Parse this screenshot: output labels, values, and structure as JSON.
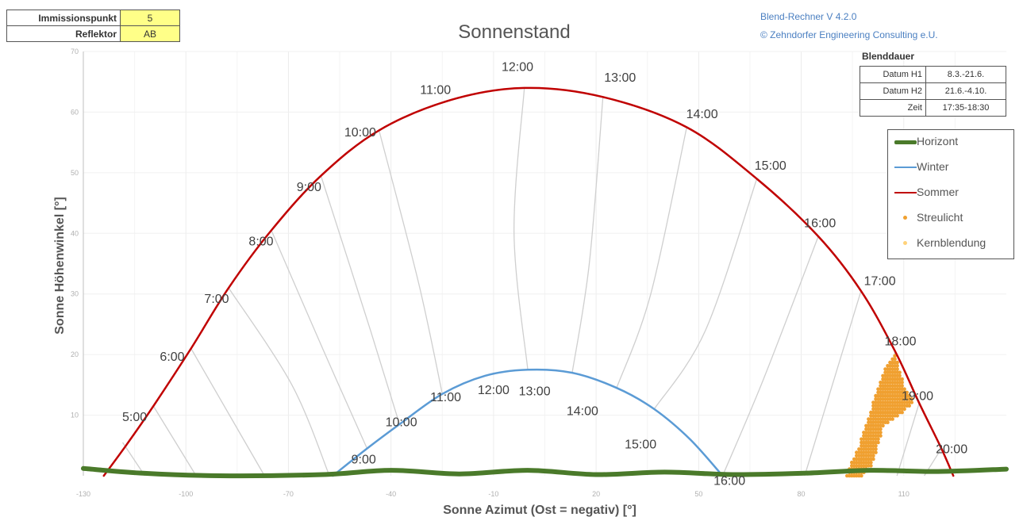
{
  "info": {
    "rows": [
      {
        "label": "Immissionspunkt",
        "value": "5"
      },
      {
        "label": "Reflektor",
        "value": "AB"
      }
    ]
  },
  "credits": {
    "line1": "Blend-Rechner   V 4.2.0",
    "line2": "© Zehndorfer Engineering Consulting e.U."
  },
  "blenddauer": {
    "title": "Blenddauer",
    "rows": [
      {
        "label": "Datum H1",
        "value": "8.3.-21.6."
      },
      {
        "label": "Datum H2",
        "value": "21.6.-4.10."
      },
      {
        "label": "Zeit",
        "value": "17:35-18:30"
      }
    ]
  },
  "legend": [
    {
      "label": "Horizont",
      "color": "#4a7a2a",
      "kind": "thick-line"
    },
    {
      "label": "Winter",
      "color": "#5b9bd5",
      "kind": "line"
    },
    {
      "label": "Sommer",
      "color": "#c00000",
      "kind": "line"
    },
    {
      "label": "Streulicht",
      "color": "#f0a030",
      "kind": "dot"
    },
    {
      "label": "Kernblendung",
      "color": "#ffd27a",
      "kind": "dot"
    }
  ],
  "chart_data": {
    "type": "line",
    "title": "Sonnenstand",
    "xlabel": "Sonne Azimut (Ost = negativ) [°]",
    "ylabel": "Sonne Höhenwinkel [°]",
    "xlim": [
      -130,
      140
    ],
    "ylim": [
      0,
      70
    ],
    "xticks": [
      "-130",
      "-100",
      "-70",
      "-40",
      "-10",
      "20",
      "50",
      "80",
      "110"
    ],
    "yticks": [
      "10",
      "20",
      "30",
      "40",
      "50",
      "60",
      "70"
    ],
    "grid": true,
    "legend_position": "right",
    "series": [
      {
        "name": "Sommer",
        "color": "#c00000",
        "points": [
          [
            -124,
            0
          ],
          [
            -117.5,
            5
          ],
          [
            -109.5,
            11.5
          ],
          [
            -98.5,
            21
          ],
          [
            -87.5,
            31
          ],
          [
            -75,
            40.5
          ],
          [
            -60.5,
            49.5
          ],
          [
            -43.5,
            57
          ],
          [
            -22.5,
            62
          ],
          [
            -1,
            64
          ],
          [
            22,
            62.5
          ],
          [
            46.5,
            57.5
          ],
          [
            67,
            49
          ],
          [
            85,
            39.5
          ],
          [
            97.5,
            30.5
          ],
          [
            107.5,
            20.5
          ],
          [
            114.5,
            12
          ],
          [
            121,
            4.5
          ],
          [
            124.5,
            0
          ]
        ]
      },
      {
        "name": "Winter",
        "color": "#5b9bd5",
        "points": [
          [
            -57,
            0
          ],
          [
            -47,
            4.5
          ],
          [
            -37.5,
            8.5
          ],
          [
            -25,
            13.5
          ],
          [
            -12.5,
            16.5
          ],
          [
            0,
            17.5
          ],
          [
            13,
            17
          ],
          [
            26,
            14.5
          ],
          [
            37,
            11
          ],
          [
            47.5,
            6
          ],
          [
            57,
            0
          ]
        ]
      },
      {
        "name": "Horizont",
        "color": "#4a7a2a",
        "points": [
          [
            -130,
            1.2
          ],
          [
            -112,
            0.4
          ],
          [
            -90,
            0
          ],
          [
            -60,
            0.2
          ],
          [
            -40,
            0.9
          ],
          [
            -20,
            0.3
          ],
          [
            0,
            0.9
          ],
          [
            20,
            0.2
          ],
          [
            40,
            0.6
          ],
          [
            60,
            0.2
          ],
          [
            80,
            0.4
          ],
          [
            100,
            0.9
          ],
          [
            120,
            0.7
          ],
          [
            140,
            1.1
          ]
        ]
      }
    ],
    "hour_curves": [
      {
        "label": "5:00",
        "points": [
          [
            -118.5,
            5.5
          ],
          [
            -112,
            0
          ]
        ]
      },
      {
        "label": "6:00",
        "points": [
          [
            -109.5,
            11.5
          ],
          [
            -97,
            0
          ]
        ]
      },
      {
        "label": "7:00",
        "points": [
          [
            -98.5,
            21
          ],
          [
            -77,
            0
          ]
        ]
      },
      {
        "label": "8:00",
        "points": [
          [
            -87.5,
            31
          ],
          [
            -69,
            15
          ],
          [
            -58,
            0
          ]
        ]
      },
      {
        "label": "9:00",
        "points": [
          [
            -75,
            40.5
          ],
          [
            -60,
            21
          ],
          [
            -47,
            4.5
          ]
        ]
      },
      {
        "label": "10:00",
        "points": [
          [
            -60.5,
            49.5
          ],
          [
            -46,
            24
          ],
          [
            -37.5,
            8.5
          ]
        ]
      },
      {
        "label": "11:00",
        "points": [
          [
            -43.5,
            57
          ],
          [
            -32,
            32
          ],
          [
            -25,
            13.5
          ]
        ]
      },
      {
        "label": "12:00",
        "points": [
          [
            -1,
            64
          ],
          [
            -4,
            40
          ],
          [
            0,
            17.5
          ]
        ]
      },
      {
        "label": "13:00",
        "points": [
          [
            22,
            62.5
          ],
          [
            18,
            35
          ],
          [
            13,
            17
          ]
        ]
      },
      {
        "label": "14:00",
        "points": [
          [
            46.5,
            57.5
          ],
          [
            36,
            30
          ],
          [
            26,
            14.5
          ]
        ]
      },
      {
        "label": "15:00",
        "points": [
          [
            67,
            49
          ],
          [
            52,
            24
          ],
          [
            37,
            11
          ]
        ]
      },
      {
        "label": "16:00",
        "points": [
          [
            85,
            39.5
          ],
          [
            69,
            16
          ],
          [
            57,
            0
          ]
        ]
      },
      {
        "label": "17:00",
        "points": [
          [
            97.5,
            30.5
          ],
          [
            81,
            0
          ]
        ]
      },
      {
        "label": "18:00",
        "points": [
          [
            107.5,
            20.5
          ],
          [
            96,
            0
          ]
        ]
      },
      {
        "label": "19:00",
        "points": [
          [
            114.5,
            12
          ],
          [
            108,
            0
          ]
        ]
      },
      {
        "label": "20:00",
        "points": [
          [
            121,
            4.5
          ],
          [
            116,
            0
          ]
        ]
      }
    ],
    "summer_hour_labels": [
      {
        "text": "5:00",
        "x": -115,
        "y": 9
      },
      {
        "text": "6:00",
        "x": -104,
        "y": 19
      },
      {
        "text": "7:00",
        "x": -91,
        "y": 28.5
      },
      {
        "text": "8:00",
        "x": -78,
        "y": 38
      },
      {
        "text": "9:00",
        "x": -64,
        "y": 47
      },
      {
        "text": "10:00",
        "x": -49,
        "y": 56
      },
      {
        "text": "11:00",
        "x": -27,
        "y": 63
      },
      {
        "text": "12:00",
        "x": -3,
        "y": 66.8
      },
      {
        "text": "13:00",
        "x": 27,
        "y": 65
      },
      {
        "text": "14:00",
        "x": 51,
        "y": 59
      },
      {
        "text": "15:00",
        "x": 71,
        "y": 50.5
      },
      {
        "text": "16:00",
        "x": 85.5,
        "y": 41
      },
      {
        "text": "17:00",
        "x": 103,
        "y": 31.5
      },
      {
        "text": "18:00",
        "x": 109,
        "y": 21.5
      },
      {
        "text": "19:00",
        "x": 114,
        "y": 12.5
      },
      {
        "text": "20:00",
        "x": 124,
        "y": 3.7
      }
    ],
    "winter_hour_labels": [
      {
        "text": "9:00",
        "x": -48,
        "y": 2
      },
      {
        "text": "10:00",
        "x": -37,
        "y": 8.2
      },
      {
        "text": "11:00",
        "x": -24,
        "y": 12.3
      },
      {
        "text": "12:00",
        "x": -10,
        "y": 13.5
      },
      {
        "text": "13:00",
        "x": 2,
        "y": 13.3
      },
      {
        "text": "14:00",
        "x": 16,
        "y": 10
      },
      {
        "text": "15:00",
        "x": 33,
        "y": 4.5
      },
      {
        "text": "16:00",
        "x": 59,
        "y": -1.5
      }
    ],
    "streulicht_region": {
      "polygon": [
        [
          93,
          0
        ],
        [
          97,
          5
        ],
        [
          101,
          12
        ],
        [
          105,
          18.5
        ],
        [
          107.5,
          20
        ],
        [
          110,
          15
        ],
        [
          113,
          12
        ],
        [
          104,
          8
        ],
        [
          101,
          2
        ],
        [
          98,
          0
        ]
      ],
      "color": "#f0a030"
    }
  }
}
